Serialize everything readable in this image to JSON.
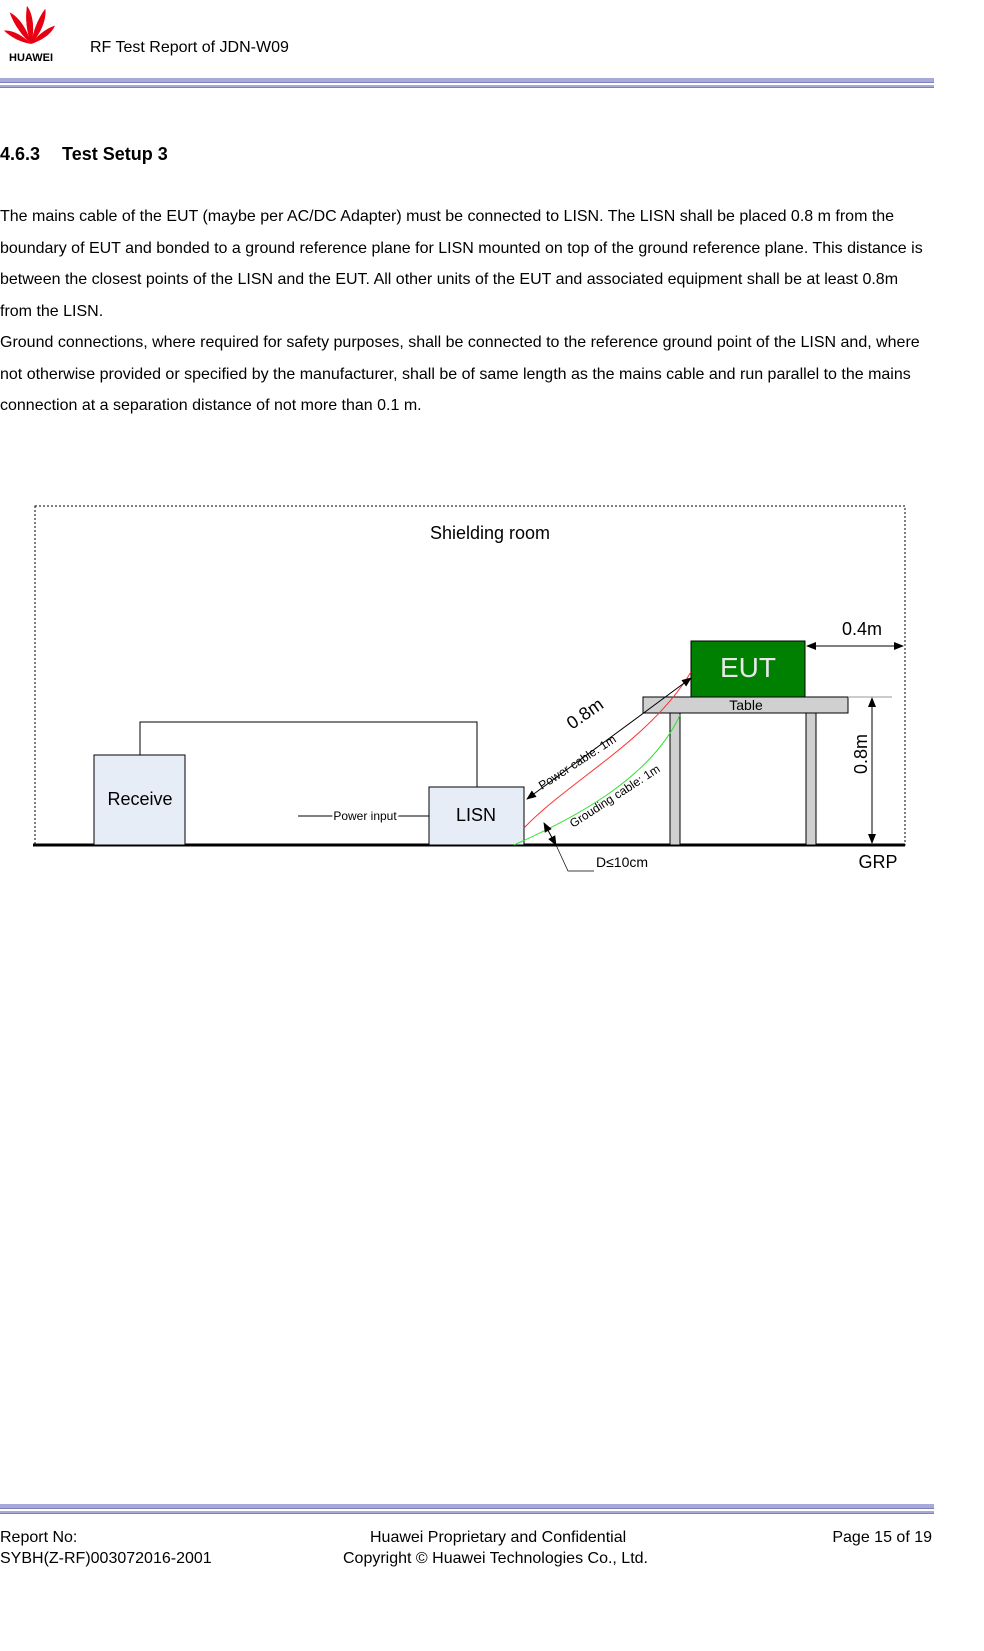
{
  "header": {
    "logo": "HUAWEI",
    "title": "RF Test Report of JDN-W09"
  },
  "section": {
    "number": "4.6.3",
    "title": "Test Setup 3"
  },
  "paragraphs": [
    "The mains cable of the EUT (maybe per AC/DC Adapter) must be connected to LISN. The LISN shall be placed 0.8 m from the boundary of EUT and bonded to a ground reference plane for LISN mounted on top of the ground reference plane. This distance is between the closest points of the LISN and the EUT. All other units of the EUT and associated equipment shall be at least 0.8m from the LISN.",
    "Ground connections, where required for safety purposes, shall be connected to the reference ground point of the LISN and, where not otherwise provided or specified by the manufacturer, shall be of same length as the mains cable and run parallel to the mains connection at a separation distance of not more than 0.1 m."
  ],
  "diagram": {
    "room": "Shielding room",
    "eut": "EUT",
    "table": "Table",
    "receive": "Receive",
    "lisn": "LISN",
    "power_input": "Power input",
    "power_cable": "Power cable: 1m",
    "grounding_cable": "Grouding cable: 1m",
    "distance_d": "D≤10cm",
    "distance_eut_edge": "0.4m",
    "distance_lisn_eut": "0.8m",
    "table_height": "0.8m",
    "ground_plane": "GRP"
  },
  "footer": {
    "report_label": "Report No:",
    "report_no": "SYBH(Z-RF)003072016-2001",
    "confidentiality": "Huawei Proprietary and Confidential",
    "copyright": "Copyright © Huawei Technologies Co., Ltd.",
    "page": "Page 15 of 19"
  }
}
